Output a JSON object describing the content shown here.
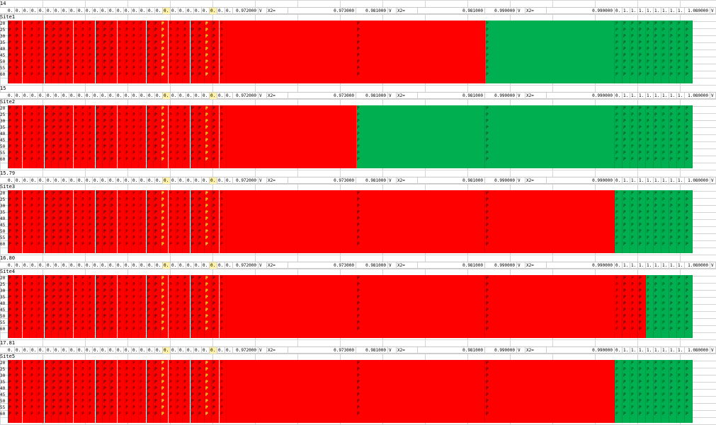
{
  "top_value": "14",
  "header": {
    "small_cell": "0.",
    "col_972_a": "0.972000",
    "col_v": "V",
    "col_x2": "X2=",
    "col_972_b": "0.973000",
    "col_981_a": "0.981000",
    "col_981_b": "0.981000",
    "col_990_a": "0.990000",
    "col_990_b": "0.990000",
    "right_small_a": "0.",
    "right_small_b": "1.",
    "col_1080": "1.080000",
    "col_v_end": "V"
  },
  "row_labels": [
    "20",
    "25",
    "30",
    "35",
    "40",
    "45",
    "50",
    "55",
    "60"
  ],
  "cell_flag": "P",
  "sites": [
    {
      "name": "Site1",
      "pre_label": "14"
    },
    {
      "name": "Site2",
      "pre_label": "15"
    },
    {
      "name": "Site3",
      "pre_label": "15.79"
    },
    {
      "name": "Site4",
      "pre_label": "16.80"
    },
    {
      "name": "Site5",
      "pre_label": "17.81"
    }
  ],
  "colors": {
    "fail": "#ff0000",
    "pass": "#00b050",
    "highlight": "#ffff40"
  }
}
